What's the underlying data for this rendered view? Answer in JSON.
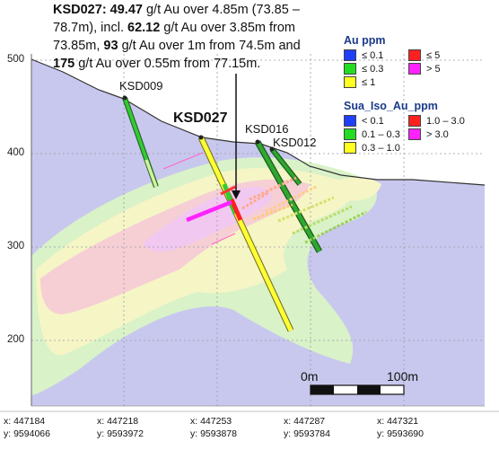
{
  "callout": {
    "hole": "KSD027",
    "p1": ": ",
    "g1": "49.47",
    "t1": " g/t Au over 4.85m (73.85 – 78.7m), incl. ",
    "g2": "62.12",
    "t2": " g/t Au over 3.85m from 73.85m, ",
    "g3": "93",
    "t3": " g/t Au over 1m from 74.5m and ",
    "g4": "175",
    "t4": " g/t Au over 0.55m from 77.15m."
  },
  "legend_au": {
    "title": "Au ppm",
    "items": [
      {
        "label": "≤ 0.1",
        "color": "#1f3fff"
      },
      {
        "label": "≤ 5",
        "color": "#ff2020"
      },
      {
        "label": "≤ 0.3",
        "color": "#22dd22"
      },
      {
        "label": "> 5",
        "color": "#ff22ff"
      },
      {
        "label": "≤ 1",
        "color": "#ffff22"
      }
    ]
  },
  "legend_iso": {
    "title": "Sua_Iso_Au_ppm",
    "items": [
      {
        "label": "< 0.1",
        "color": "#1f3fff"
      },
      {
        "label": "1.0 – 3.0",
        "color": "#ff2020"
      },
      {
        "label": "0.1 – 0.3",
        "color": "#22dd22"
      },
      {
        "label": "> 3.0",
        "color": "#ff22ff"
      },
      {
        "label": "0.3 – 1.0",
        "color": "#ffff22"
      }
    ]
  },
  "elevation_labels": [
    "500",
    "400",
    "300",
    "200"
  ],
  "x_ticks": [
    {
      "x": "x: 447184",
      "y": "y: 9594066"
    },
    {
      "x": "x: 447218",
      "y": "y: 9593972"
    },
    {
      "x": "x: 447253",
      "y": "y: 9593878"
    },
    {
      "x": "x: 447287",
      "y": "y: 9593784"
    },
    {
      "x": "x: 447321",
      "y": "y: 9593690"
    }
  ],
  "drillholes": {
    "ksd009": "KSD009",
    "ksd027": "KSD027",
    "ksd016": "KSD016",
    "ksd012": "KSD012"
  },
  "scale_bar": {
    "start": "0m",
    "end": "100m"
  },
  "colors": {
    "background": "#c8c8ee",
    "iso_low": "#d9f2c8",
    "iso_mid": "#f6f5c6",
    "iso_high": "#f6cfd4",
    "iso_top": "#f1c8f0"
  }
}
